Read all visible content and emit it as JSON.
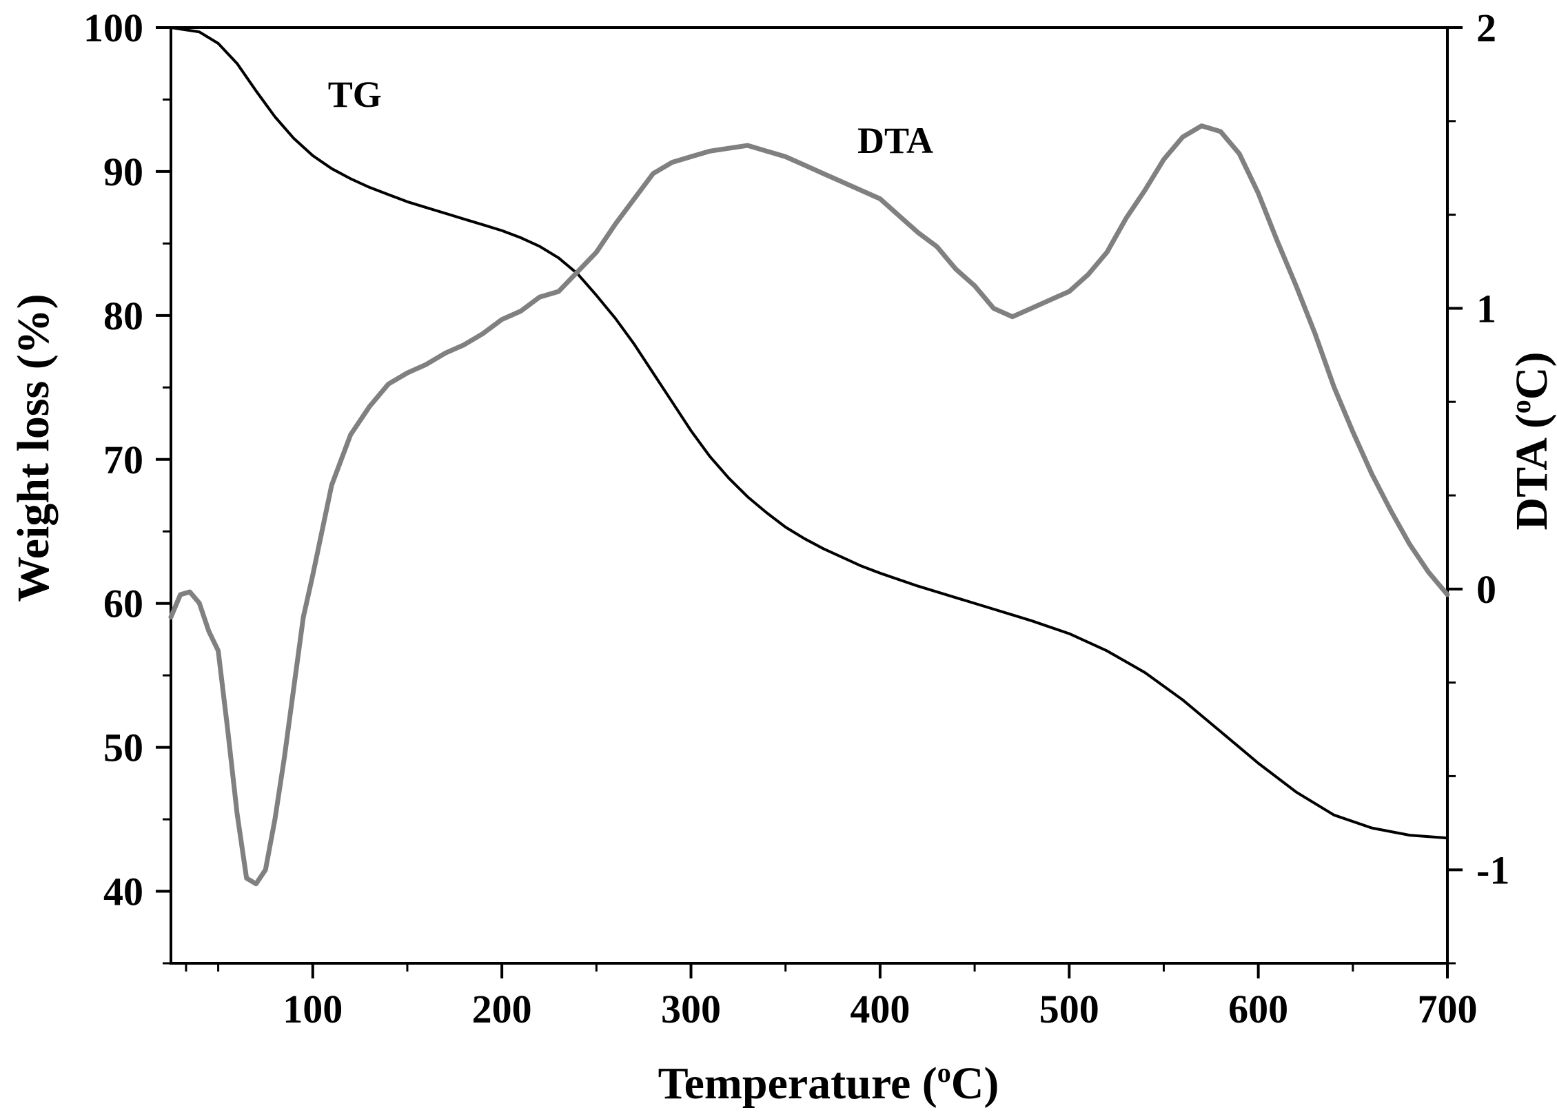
{
  "chart_data": {
    "type": "line",
    "title": "",
    "xlabel": "Temperature (°C)",
    "xlabel_main": "Temperature (",
    "xlabel_sup": "o",
    "xlabel_end": "C)",
    "ylabel": "Weight loss (%)",
    "y2label": "DTA (°C)",
    "y2label_main": "DTA (",
    "y2label_sup": "o",
    "y2label_end": "C)",
    "xlim": [
      25,
      700
    ],
    "ylim": [
      35,
      100
    ],
    "y2lim": [
      -1.333,
      2
    ],
    "x_ticks": [
      100,
      200,
      300,
      400,
      500,
      600,
      700
    ],
    "x_tick_labels": [
      "100",
      "200",
      "300",
      "400",
      "500",
      "600",
      "700"
    ],
    "y_ticks": [
      40,
      50,
      60,
      70,
      80,
      90,
      100
    ],
    "y_tick_labels": [
      "40",
      "50",
      "60",
      "70",
      "80",
      "90",
      "100"
    ],
    "y2_ticks": [
      -1,
      0,
      1,
      2
    ],
    "y2_tick_labels": [
      "-1",
      "0",
      "1",
      "2"
    ],
    "grid": false,
    "series": [
      {
        "name": "TG",
        "axis": "left",
        "color": "#000000",
        "x": [
          25,
          40,
          50,
          60,
          70,
          80,
          90,
          100,
          110,
          120,
          130,
          140,
          150,
          160,
          170,
          180,
          190,
          200,
          210,
          220,
          230,
          240,
          250,
          260,
          270,
          280,
          290,
          300,
          310,
          320,
          330,
          340,
          350,
          360,
          370,
          380,
          390,
          400,
          420,
          440,
          460,
          480,
          500,
          520,
          540,
          560,
          580,
          600,
          620,
          640,
          660,
          680,
          700
        ],
        "values": [
          100,
          99.7,
          98.9,
          97.5,
          95.6,
          93.8,
          92.3,
          91.1,
          90.2,
          89.5,
          88.9,
          88.4,
          87.9,
          87.5,
          87.1,
          86.7,
          86.3,
          85.9,
          85.4,
          84.8,
          84.0,
          82.9,
          81.4,
          79.8,
          78.0,
          76.0,
          74.0,
          72.0,
          70.2,
          68.7,
          67.4,
          66.3,
          65.3,
          64.5,
          63.8,
          63.2,
          62.6,
          62.1,
          61.2,
          60.4,
          59.6,
          58.8,
          57.9,
          56.7,
          55.2,
          53.3,
          51.1,
          48.9,
          46.9,
          45.3,
          44.4,
          43.9,
          43.7
        ]
      },
      {
        "name": "DTA",
        "axis": "right",
        "color": "#808080",
        "x": [
          25,
          30,
          35,
          40,
          45,
          50,
          55,
          60,
          65,
          70,
          75,
          80,
          85,
          90,
          95,
          100,
          110,
          120,
          130,
          140,
          150,
          160,
          170,
          180,
          190,
          200,
          210,
          220,
          230,
          240,
          250,
          260,
          270,
          280,
          290,
          300,
          310,
          320,
          330,
          340,
          350,
          360,
          370,
          380,
          390,
          400,
          410,
          420,
          430,
          440,
          450,
          460,
          470,
          480,
          490,
          500,
          510,
          520,
          530,
          540,
          550,
          560,
          570,
          580,
          590,
          600,
          610,
          620,
          630,
          640,
          650,
          660,
          670,
          680,
          690,
          700
        ],
        "values": [
          -0.1,
          -0.02,
          -0.01,
          -0.05,
          -0.15,
          -0.22,
          -0.5,
          -0.8,
          -1.03,
          -1.05,
          -1.0,
          -0.82,
          -0.6,
          -0.35,
          -0.1,
          0.05,
          0.37,
          0.55,
          0.65,
          0.73,
          0.77,
          0.8,
          0.84,
          0.87,
          0.91,
          0.96,
          0.99,
          1.04,
          1.06,
          1.13,
          1.2,
          1.3,
          1.39,
          1.48,
          1.52,
          1.54,
          1.56,
          1.57,
          1.58,
          1.56,
          1.54,
          1.51,
          1.48,
          1.45,
          1.42,
          1.39,
          1.33,
          1.27,
          1.22,
          1.14,
          1.08,
          1.0,
          0.97,
          1.0,
          1.03,
          1.06,
          1.12,
          1.2,
          1.32,
          1.42,
          1.53,
          1.61,
          1.65,
          1.63,
          1.55,
          1.41,
          1.24,
          1.08,
          0.91,
          0.72,
          0.56,
          0.41,
          0.28,
          0.16,
          0.06,
          -0.02
        ]
      }
    ],
    "annotations": [
      {
        "text": "TG",
        "x": 108,
        "y": 94.5
      },
      {
        "text": "DTA",
        "x": 388,
        "y": 91.3
      }
    ]
  }
}
